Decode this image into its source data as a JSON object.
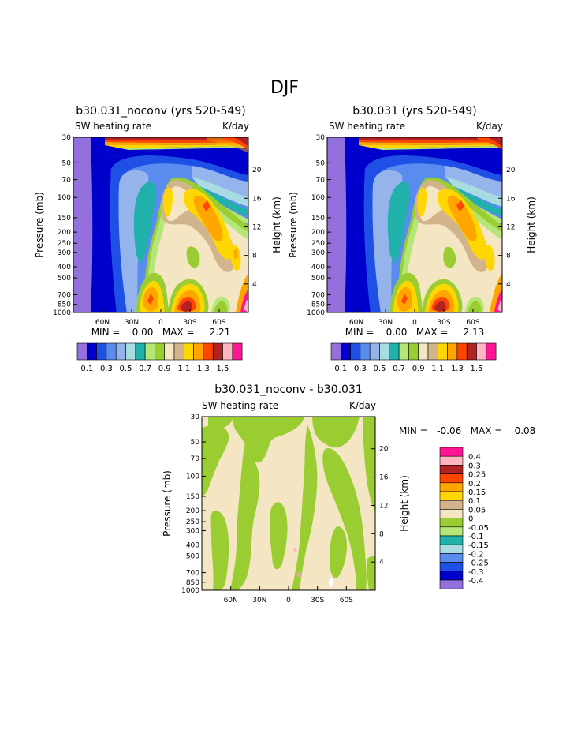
{
  "page_title": "DJF",
  "colors": {
    "bin_palette": [
      "#9370db",
      "#0000cd",
      "#1e50e6",
      "#5a8cf0",
      "#96b4ec",
      "#a8dce0",
      "#20b2aa",
      "#b4e678",
      "#9acd32",
      "#f5e6c3",
      "#d2b48c",
      "#ffd700",
      "#ffa500",
      "#ff4500",
      "#b22222",
      "#ffb6c1",
      "#ff1493"
    ],
    "diff_palette": [
      "#9370db",
      "#0000cd",
      "#1e50e6",
      "#5a8cf0",
      "#a8dce0",
      "#20b2aa",
      "#b4e678",
      "#9acd32",
      "#f5e6c3",
      "#d2b48c",
      "#ffd700",
      "#ffa500",
      "#ff4500",
      "#b22222",
      "#ffb6c1",
      "#ff1493"
    ]
  },
  "chart_data": [
    {
      "type": "heatmap",
      "title": "b30.031_noconv (yrs 520-549)",
      "left_label": "SW heating rate",
      "right_label": "K/day",
      "ylabel": "Pressure (mb)",
      "ylabel_right": "Height (km)",
      "x_ticks": [
        "60N",
        "30N",
        "0",
        "30S",
        "60S"
      ],
      "y_ticks": [
        "1000",
        "850",
        "700",
        "500",
        "400",
        "300",
        "250",
        "200",
        "150",
        "100",
        "70",
        "50",
        "30"
      ],
      "y_ticks_right": [
        "20",
        "16",
        "12",
        "8",
        "4"
      ],
      "stats": "MIN =    0.00   MAX =     2.21",
      "colorbar_labels": [
        "0.1",
        "0.3",
        "0.5",
        "0.7",
        "0.9",
        "1.1",
        "1.3",
        "1.5"
      ],
      "ylim": [
        1000,
        30
      ],
      "xlim": [
        "90N",
        "90S"
      ]
    },
    {
      "type": "heatmap",
      "title": "b30.031 (yrs 520-549)",
      "left_label": "SW heating rate",
      "right_label": "K/day",
      "ylabel": "Pressure (mb)",
      "ylabel_right": "Height (km)",
      "x_ticks": [
        "60N",
        "30N",
        "0",
        "30S",
        "60S"
      ],
      "y_ticks": [
        "1000",
        "850",
        "700",
        "500",
        "400",
        "300",
        "250",
        "200",
        "150",
        "100",
        "70",
        "50",
        "30"
      ],
      "y_ticks_right": [
        "20",
        "16",
        "12",
        "8",
        "4"
      ],
      "stats": "MIN =    0.00   MAX =     2.13",
      "colorbar_labels": [
        "0.1",
        "0.3",
        "0.5",
        "0.7",
        "0.9",
        "1.1",
        "1.3",
        "1.5"
      ],
      "ylim": [
        1000,
        30
      ],
      "xlim": [
        "90N",
        "90S"
      ]
    },
    {
      "type": "heatmap",
      "title": "b30.031_noconv - b30.031",
      "left_label": "SW heating rate",
      "right_label": "K/day",
      "ylabel": "Pressure (mb)",
      "ylabel_right": "Height (km)",
      "x_ticks": [
        "60N",
        "30N",
        "0",
        "30S",
        "60S"
      ],
      "y_ticks": [
        "1000",
        "850",
        "700",
        "500",
        "400",
        "300",
        "250",
        "200",
        "150",
        "100",
        "70",
        "50",
        "30"
      ],
      "y_ticks_right": [
        "20",
        "16",
        "12",
        "8",
        "4"
      ],
      "stats": "MIN =   -0.06   MAX =    0.08",
      "colorbar_labels": [
        "0.4",
        "0.3",
        "0.25",
        "0.2",
        "0.15",
        "0.1",
        "0.05",
        "0",
        "-0.05",
        "-0.1",
        "-0.15",
        "-0.2",
        "-0.25",
        "-0.3",
        "-0.4"
      ],
      "ylim": [
        1000,
        30
      ],
      "xlim": [
        "90N",
        "90S"
      ]
    }
  ]
}
